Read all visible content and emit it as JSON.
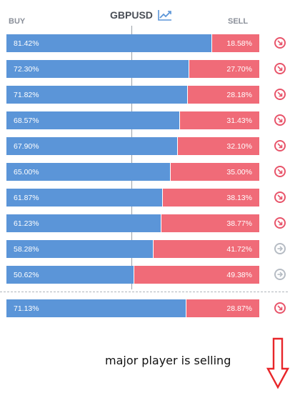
{
  "header": {
    "buy_label": "BUY",
    "sell_label": "SELL",
    "symbol": "GBPUSD",
    "chart_icon": "trend-chart-icon"
  },
  "rows": [
    {
      "buy": 81.42,
      "buy_label": "81.42%",
      "sell_label": "18.58%",
      "direction": "down"
    },
    {
      "buy": 72.3,
      "buy_label": "72.30%",
      "sell_label": "27.70%",
      "direction": "down"
    },
    {
      "buy": 71.82,
      "buy_label": "71.82%",
      "sell_label": "28.18%",
      "direction": "down"
    },
    {
      "buy": 68.57,
      "buy_label": "68.57%",
      "sell_label": "31.43%",
      "direction": "down"
    },
    {
      "buy": 67.9,
      "buy_label": "67.90%",
      "sell_label": "32.10%",
      "direction": "down"
    },
    {
      "buy": 65.0,
      "buy_label": "65.00%",
      "sell_label": "35.00%",
      "direction": "down"
    },
    {
      "buy": 61.87,
      "buy_label": "61.87%",
      "sell_label": "38.13%",
      "direction": "down"
    },
    {
      "buy": 61.23,
      "buy_label": "61.23%",
      "sell_label": "38.77%",
      "direction": "down"
    },
    {
      "buy": 58.28,
      "buy_label": "58.28%",
      "sell_label": "41.72%",
      "direction": "right"
    },
    {
      "buy": 50.62,
      "buy_label": "50.62%",
      "sell_label": "49.38%",
      "direction": "right"
    }
  ],
  "summary": {
    "buy": 71.13,
    "buy_label": "71.13%",
    "sell_label": "28.87%",
    "direction": "down"
  },
  "annotation": {
    "text": "major player is selling",
    "arrow_icon": "down-arrow-icon"
  },
  "colors": {
    "buy": "#5b95d8",
    "sell": "#f06b78",
    "arrow_active": "#e8546a",
    "arrow_neutral": "#b6bcc4",
    "annotation_arrow": "#e8262a"
  }
}
